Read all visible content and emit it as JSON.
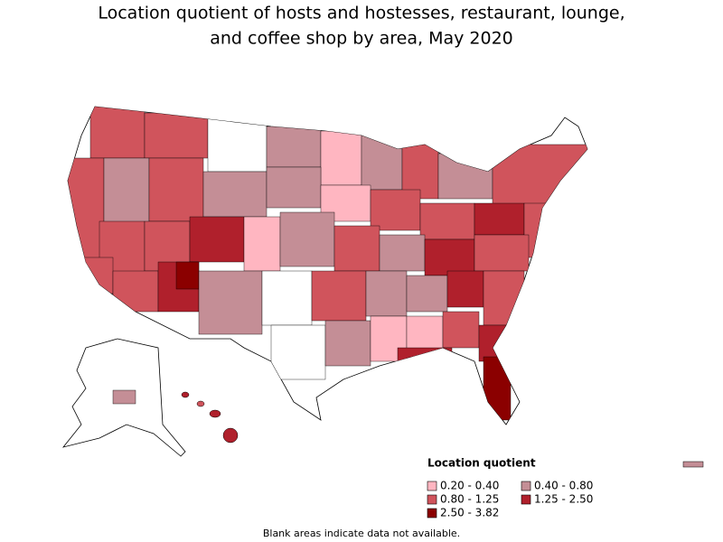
{
  "title_lines": [
    "Location quotient of hosts and hostesses, restaurant, lounge,",
    "and coffee shop by area, May 2020"
  ],
  "legend": {
    "title": "Location quotient",
    "items": [
      {
        "label": "0.20 - 0.40",
        "color": "#ffb6c1"
      },
      {
        "label": "0.40 - 0.80",
        "color": "#c48e96"
      },
      {
        "label": "0.80 - 1.25",
        "color": "#d0545c"
      },
      {
        "label": "1.25 - 2.50",
        "color": "#b0202c"
      },
      {
        "label": "2.50 - 3.82",
        "color": "#8b0000"
      }
    ]
  },
  "footnote": "Blank areas indicate data not available."
}
